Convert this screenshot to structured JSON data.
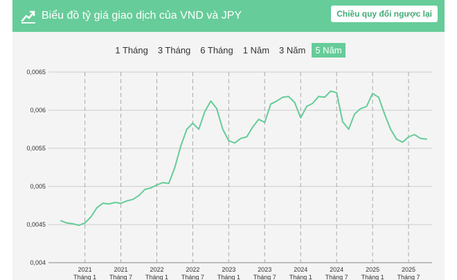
{
  "header": {
    "title": "Biểu đồ tỷ giá giao dịch của VND và JPY",
    "reverse_label": "Chiều quy đổi ngược lại",
    "color": "#66cc99"
  },
  "range_tabs": [
    {
      "label": "1 Tháng",
      "active": false
    },
    {
      "label": "3 Tháng",
      "active": false
    },
    {
      "label": "6 Tháng",
      "active": false
    },
    {
      "label": "1 Năm",
      "active": false
    },
    {
      "label": "3 Năm",
      "active": false
    },
    {
      "label": "5 Năm",
      "active": true
    }
  ],
  "chart_data": {
    "type": "line",
    "title": "",
    "xlabel": "",
    "ylabel": "",
    "ylim": [
      0.004,
      0.0065
    ],
    "yticks": [
      "0,004",
      "0,0045",
      "0,005",
      "0,0055",
      "0,006",
      "0,0065"
    ],
    "xticks": [
      {
        "year": "2021",
        "month": "Tháng 1"
      },
      {
        "year": "2021",
        "month": "Tháng 7"
      },
      {
        "year": "2022",
        "month": "Tháng 1"
      },
      {
        "year": "2022",
        "month": "Tháng 7"
      },
      {
        "year": "2023",
        "month": "Tháng 1"
      },
      {
        "year": "2023",
        "month": "Tháng 7"
      },
      {
        "year": "2024",
        "month": "Tháng 1"
      },
      {
        "year": "2024",
        "month": "Tháng 7"
      },
      {
        "year": "2025",
        "month": "Tháng 1"
      },
      {
        "year": "2025",
        "month": "Tháng 7"
      }
    ],
    "xlim": [
      "2020-09",
      "2025-10"
    ],
    "line_color": "#66cc99",
    "grid": true,
    "series": [
      {
        "values": [
          [
            "2020-09",
            0.00455
          ],
          [
            "2020-10",
            0.00452
          ],
          [
            "2020-11",
            0.00451
          ],
          [
            "2020-12",
            0.00449
          ],
          [
            "2021-01",
            0.00452
          ],
          [
            "2021-02",
            0.0046
          ],
          [
            "2021-03",
            0.00472
          ],
          [
            "2021-04",
            0.00478
          ],
          [
            "2021-05",
            0.00477
          ],
          [
            "2021-06",
            0.00479
          ],
          [
            "2021-07",
            0.00478
          ],
          [
            "2021-08",
            0.00481
          ],
          [
            "2021-09",
            0.00483
          ],
          [
            "2021-10",
            0.00488
          ],
          [
            "2021-11",
            0.00496
          ],
          [
            "2021-12",
            0.00498
          ],
          [
            "2022-01",
            0.00502
          ],
          [
            "2022-02",
            0.00505
          ],
          [
            "2022-03",
            0.00504
          ],
          [
            "2022-04",
            0.00525
          ],
          [
            "2022-05",
            0.00553
          ],
          [
            "2022-06",
            0.00575
          ],
          [
            "2022-07",
            0.00583
          ],
          [
            "2022-08",
            0.00575
          ],
          [
            "2022-09",
            0.00598
          ],
          [
            "2022-10",
            0.00612
          ],
          [
            "2022-11",
            0.00602
          ],
          [
            "2022-12",
            0.00575
          ],
          [
            "2023-01",
            0.0056
          ],
          [
            "2023-02",
            0.00557
          ],
          [
            "2023-03",
            0.00563
          ],
          [
            "2023-04",
            0.00565
          ],
          [
            "2023-05",
            0.00578
          ],
          [
            "2023-06",
            0.00588
          ],
          [
            "2023-07",
            0.00584
          ],
          [
            "2023-08",
            0.00608
          ],
          [
            "2023-09",
            0.00612
          ],
          [
            "2023-10",
            0.00617
          ],
          [
            "2023-11",
            0.00618
          ],
          [
            "2023-12",
            0.0061
          ],
          [
            "2024-01",
            0.0059
          ],
          [
            "2024-02",
            0.00605
          ],
          [
            "2024-03",
            0.00609
          ],
          [
            "2024-04",
            0.00618
          ],
          [
            "2024-05",
            0.00617
          ],
          [
            "2024-06",
            0.00625
          ],
          [
            "2024-07",
            0.00623
          ],
          [
            "2024-08",
            0.00585
          ],
          [
            "2024-09",
            0.00575
          ],
          [
            "2024-10",
            0.00595
          ],
          [
            "2024-11",
            0.00602
          ],
          [
            "2024-12",
            0.00605
          ],
          [
            "2025-01",
            0.00622
          ],
          [
            "2025-02",
            0.00617
          ],
          [
            "2025-03",
            0.00595
          ],
          [
            "2025-04",
            0.00575
          ],
          [
            "2025-05",
            0.00562
          ],
          [
            "2025-06",
            0.00558
          ],
          [
            "2025-07",
            0.00565
          ],
          [
            "2025-08",
            0.00568
          ],
          [
            "2025-09",
            0.00563
          ],
          [
            "2025-10",
            0.00562
          ]
        ]
      }
    ]
  }
}
